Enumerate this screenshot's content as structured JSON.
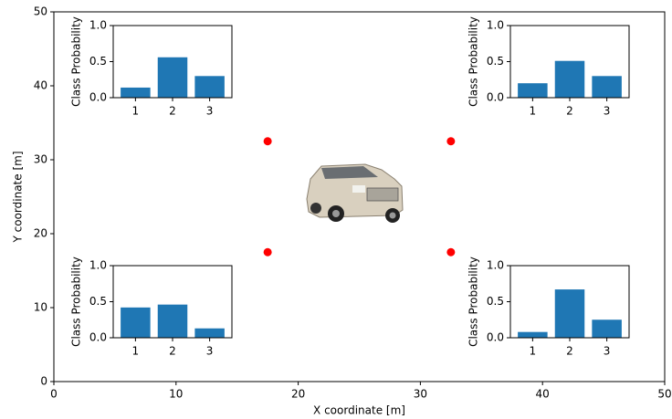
{
  "chart_data": [
    {
      "type": "scatter",
      "x_label": "X coordinate [m]",
      "y_label": "Y coordinate [m]",
      "xlim": [
        0,
        50
      ],
      "ylim": [
        0,
        50
      ],
      "xticks": [
        0,
        10,
        20,
        30,
        40,
        50
      ],
      "yticks": [
        0,
        10,
        20,
        30,
        40,
        50
      ],
      "series": [
        {
          "color": "#ff0000",
          "x": [
            17.5,
            32.5,
            17.5,
            32.5
          ],
          "y": [
            32.5,
            32.5,
            17.5,
            17.5
          ]
        }
      ]
    },
    {
      "type": "bar",
      "y_label": "Class Probability",
      "categories": [
        "1",
        "2",
        "3"
      ],
      "values": [
        0.14,
        0.56,
        0.3
      ],
      "color": "#1f77b4",
      "ylim": [
        0,
        1
      ],
      "yticks": [
        {
          "value": 0,
          "label": "0.0"
        },
        0.5,
        {
          "value": 1,
          "label": "1.0"
        }
      ]
    },
    {
      "type": "bar",
      "y_label": "Class Probability",
      "categories": [
        "1",
        "2",
        "3"
      ],
      "values": [
        0.2,
        0.51,
        0.3
      ],
      "color": "#1f77b4",
      "ylim": [
        0,
        1
      ],
      "yticks": [
        {
          "value": 0,
          "label": "0.0"
        },
        0.5,
        {
          "value": 1,
          "label": "1.0"
        }
      ]
    },
    {
      "type": "bar",
      "y_label": "Class Probability",
      "categories": [
        "1",
        "2",
        "3"
      ],
      "values": [
        0.42,
        0.46,
        0.13
      ],
      "color": "#1f77b4",
      "ylim": [
        0,
        1
      ],
      "yticks": [
        {
          "value": 0,
          "label": "0.0"
        },
        0.5,
        {
          "value": 1,
          "label": "1.0"
        }
      ]
    },
    {
      "type": "bar",
      "y_label": "Class Probability",
      "categories": [
        "1",
        "2",
        "3"
      ],
      "values": [
        0.08,
        0.67,
        0.25
      ],
      "color": "#1f77b4",
      "ylim": [
        0,
        1
      ],
      "yticks": [
        {
          "value": 0,
          "label": "0.0"
        },
        0.5,
        {
          "value": 1,
          "label": "1.0"
        }
      ]
    }
  ]
}
